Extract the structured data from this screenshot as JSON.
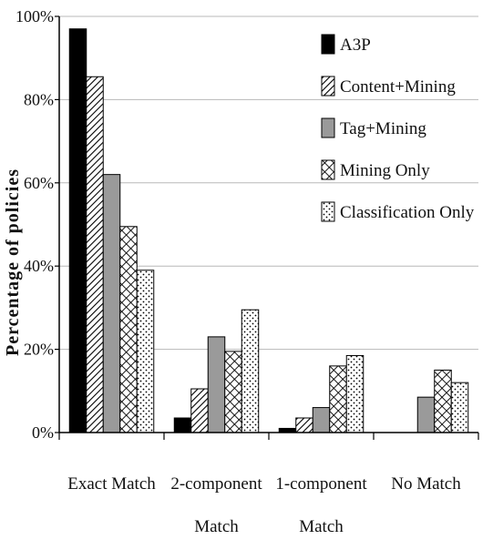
{
  "chart_data": {
    "type": "bar",
    "ylabel": "Percentage of policies",
    "xlabel": "",
    "ylim": [
      0,
      100
    ],
    "yticks": [
      "0%",
      "20%",
      "40%",
      "60%",
      "80%",
      "100%"
    ],
    "ytick_values": [
      0,
      20,
      40,
      60,
      80,
      100
    ],
    "grid": true,
    "legend_position": "top-right",
    "categories": [
      [
        "Exact Match"
      ],
      [
        "2-component",
        "Match"
      ],
      [
        "1-component",
        "Match"
      ],
      [
        "No Match"
      ]
    ],
    "series": [
      {
        "name": "A3P",
        "pattern": "solid-black",
        "values": [
          97,
          3.5,
          1,
          0
        ]
      },
      {
        "name": "Content+Mining",
        "pattern": "diagonal-hatch",
        "values": [
          85.5,
          10.5,
          3.5,
          0
        ]
      },
      {
        "name": "Tag+Mining",
        "pattern": "solid-gray",
        "values": [
          62,
          23,
          6,
          8.5
        ]
      },
      {
        "name": "Mining Only",
        "pattern": "crosshatch",
        "values": [
          49.5,
          19.5,
          16,
          15
        ]
      },
      {
        "name": "Classification Only",
        "pattern": "dotted",
        "values": [
          39,
          29.5,
          18.5,
          12
        ]
      }
    ]
  }
}
